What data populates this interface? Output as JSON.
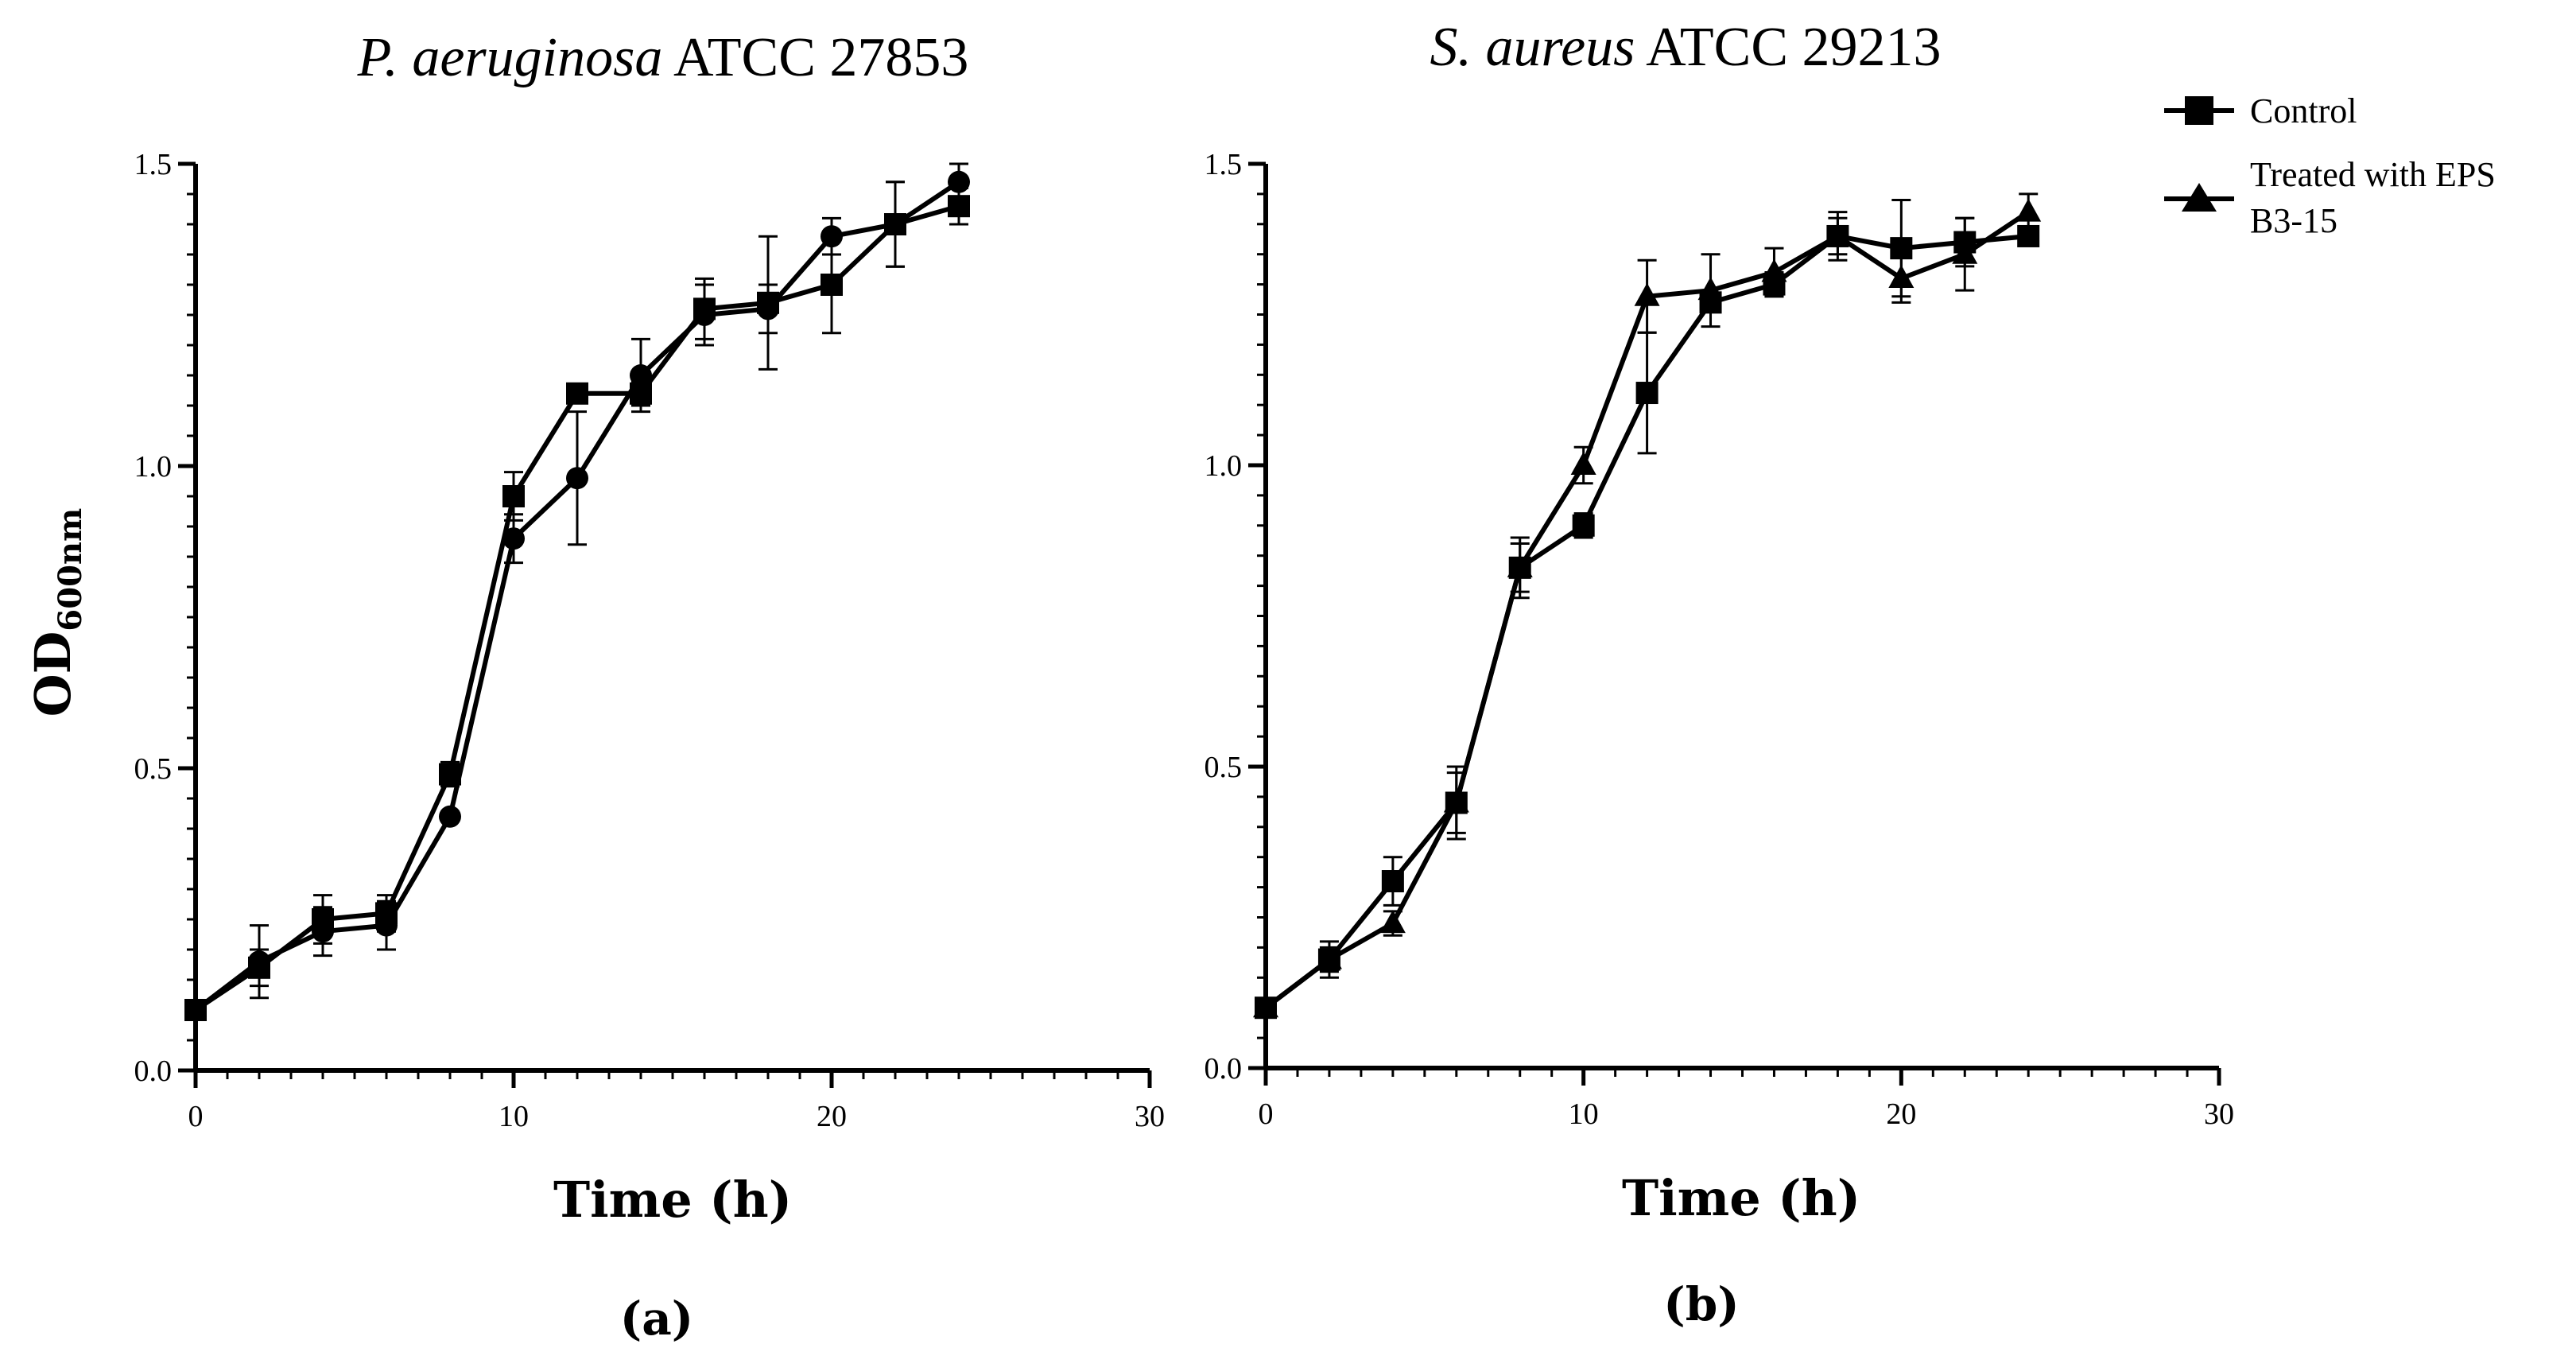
{
  "figure": {
    "ylabel_main": "OD",
    "ylabel_sub": "600nm",
    "legend": {
      "control": "Control",
      "treated_line1": "Treated with EPS",
      "treated_line2": "B3-15"
    }
  },
  "chart_data": [
    {
      "type": "line",
      "panel_label": "(a)",
      "title_italic": "P. aeruginosa",
      "title_rest": " ATCC 27853",
      "xlabel": "Time (h)",
      "ylabel": "OD600nm",
      "xlim": [
        0,
        30
      ],
      "ylim": [
        0,
        1.5
      ],
      "xticks": [
        "0",
        "10",
        "20",
        "30"
      ],
      "yticks": [
        "0.0",
        "0.5",
        "1.0",
        "1.5"
      ],
      "series": [
        {
          "name": "Control",
          "marker": "square",
          "x": [
            0,
            2,
            4,
            6,
            8,
            10,
            12,
            14,
            16,
            18,
            20,
            22,
            24
          ],
          "y": [
            0.1,
            0.17,
            0.25,
            0.26,
            0.49,
            0.95,
            1.12,
            1.12,
            1.26,
            1.27,
            1.3,
            1.4,
            1.43
          ],
          "err": [
            0.0,
            0.03,
            0.04,
            0.03,
            0.02,
            0.04,
            0.0,
            0.02,
            0.05,
            0.11,
            0.08,
            0.07,
            0.03
          ]
        },
        {
          "name": "Treated with EPS B3-15",
          "marker": "circle",
          "x": [
            0,
            2,
            4,
            6,
            8,
            10,
            12,
            14,
            16,
            18,
            20,
            22,
            24
          ],
          "y": [
            0.1,
            0.18,
            0.23,
            0.24,
            0.42,
            0.88,
            0.98,
            1.15,
            1.25,
            1.26,
            1.38,
            1.4,
            1.47
          ],
          "err": [
            0.0,
            0.06,
            0.04,
            0.04,
            0.0,
            0.04,
            0.11,
            0.06,
            0.05,
            0.04,
            0.03,
            0.07,
            0.03
          ]
        }
      ]
    },
    {
      "type": "line",
      "panel_label": "(b)",
      "title_italic": "S. aureus",
      "title_rest": " ATCC 29213",
      "xlabel": "Time (h)",
      "ylabel": "OD600nm",
      "xlim": [
        0,
        30
      ],
      "ylim": [
        0,
        1.5
      ],
      "xticks": [
        "0",
        "10",
        "20",
        "30"
      ],
      "yticks": [
        "0.0",
        "0.5",
        "1.0",
        "1.5"
      ],
      "series": [
        {
          "name": "Control",
          "marker": "square",
          "x": [
            0,
            2,
            4,
            6,
            8,
            10,
            12,
            14,
            16,
            18,
            20,
            22,
            24
          ],
          "y": [
            0.1,
            0.18,
            0.31,
            0.44,
            0.83,
            0.9,
            1.12,
            1.27,
            1.3,
            1.38,
            1.36,
            1.37,
            1.38
          ],
          "err": [
            0.0,
            0.03,
            0.04,
            0.06,
            0.05,
            0.02,
            0.1,
            0.0,
            0.02,
            0.04,
            0.08,
            0.04,
            0.0
          ]
        },
        {
          "name": "Treated with EPS B3-15",
          "marker": "triangle",
          "x": [
            0,
            2,
            4,
            6,
            8,
            10,
            12,
            14,
            16,
            18,
            20,
            22,
            24
          ],
          "y": [
            0.1,
            0.18,
            0.24,
            0.44,
            0.83,
            1.0,
            1.28,
            1.29,
            1.32,
            1.38,
            1.31,
            1.35,
            1.42
          ],
          "err": [
            0.0,
            0.02,
            0.02,
            0.05,
            0.04,
            0.03,
            0.06,
            0.06,
            0.04,
            0.03,
            0.04,
            0.06,
            0.03
          ]
        }
      ]
    }
  ]
}
